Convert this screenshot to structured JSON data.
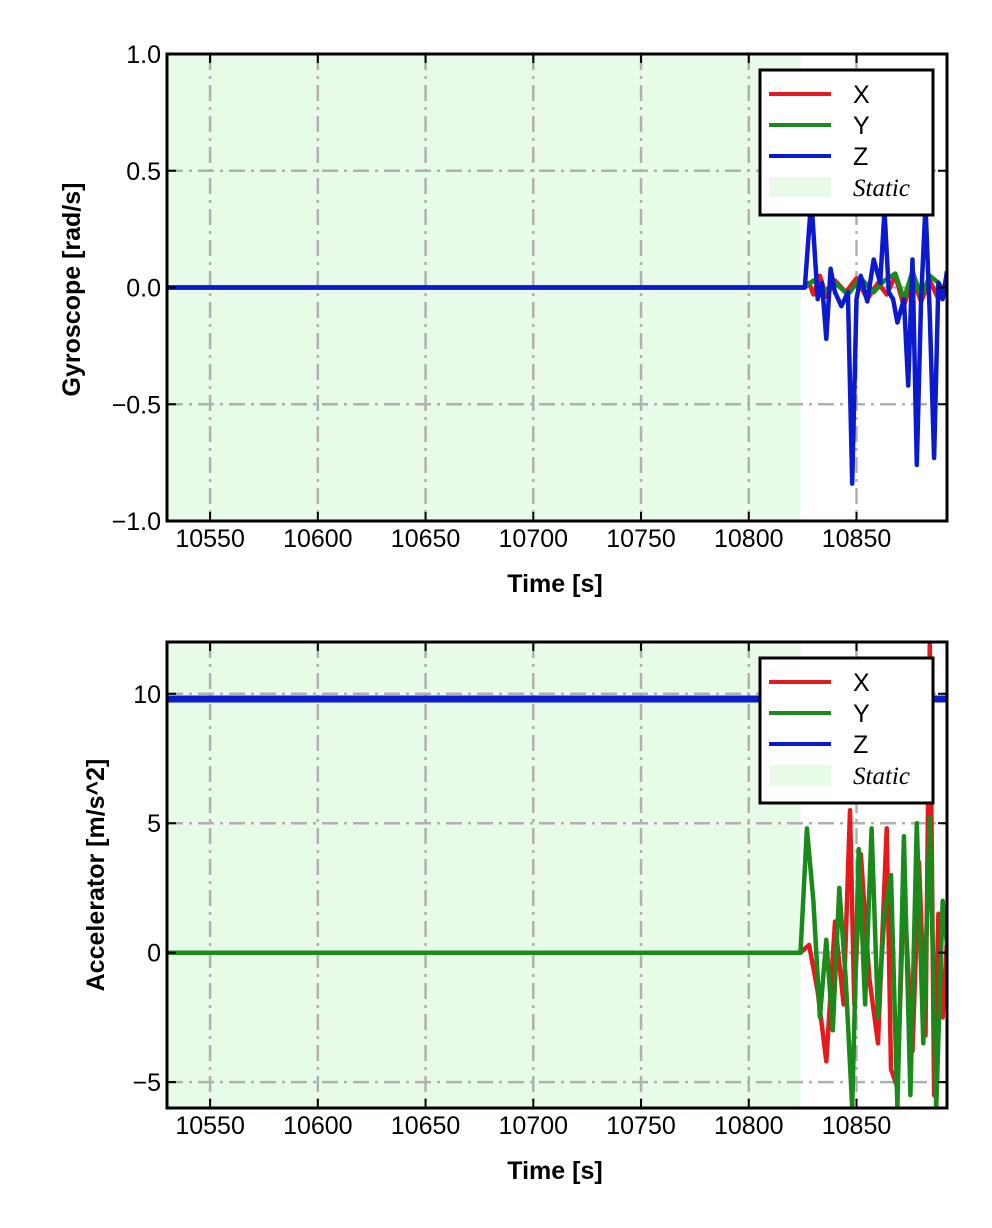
{
  "chart_data": [
    {
      "type": "line",
      "xlabel": "Time [s]",
      "ylabel": "Gyroscope [rad/s]",
      "xlim": [
        10530,
        10892
      ],
      "ylim": [
        -1.0,
        1.0
      ],
      "xticks": [
        10550,
        10600,
        10650,
        10700,
        10750,
        10800,
        10850
      ],
      "xtick_labels": [
        "10550",
        "10600",
        "10650",
        "10700",
        "10750",
        "10800",
        "10850"
      ],
      "yticks": [
        1.0,
        0.5,
        0.0,
        -0.5,
        -1.0
      ],
      "ytick_labels": [
        "1.0",
        "0.5",
        "0.0",
        "−0.5",
        "−1.0"
      ],
      "grid": true,
      "legend_position": "top-right",
      "static_region": {
        "label": "Static",
        "x_start": 10530,
        "x_end": 10824,
        "color": "#e8fbe8"
      },
      "series": [
        {
          "name": "X",
          "color": "#e41a1c",
          "x": [
            10530,
            10826,
            10828,
            10830,
            10833,
            10836,
            10840,
            10845,
            10850,
            10855,
            10860,
            10864,
            10868,
            10872,
            10876,
            10880,
            10884,
            10888,
            10892
          ],
          "y": [
            0.0,
            0.0,
            0.02,
            -0.03,
            0.05,
            -0.04,
            0.03,
            -0.02,
            0.04,
            -0.05,
            0.02,
            -0.03,
            0.05,
            -0.08,
            0.04,
            -0.06,
            0.03,
            -0.05,
            -0.02
          ]
        },
        {
          "name": "Y",
          "color": "#1a8a1a",
          "x": [
            10530,
            10826,
            10830,
            10835,
            10840,
            10846,
            10852,
            10858,
            10863,
            10868,
            10872,
            10876,
            10880,
            10884,
            10888,
            10892
          ],
          "y": [
            0.0,
            0.0,
            0.03,
            -0.02,
            0.02,
            -0.03,
            0.04,
            -0.02,
            0.03,
            0.06,
            -0.05,
            0.07,
            -0.04,
            0.05,
            0.02,
            -0.03
          ]
        },
        {
          "name": "Z",
          "color": "#0a1acc",
          "x": [
            10530,
            10826,
            10829,
            10832,
            10834,
            10836,
            10838,
            10840,
            10843,
            10846,
            10848,
            10850,
            10852,
            10855,
            10858,
            10861,
            10863,
            10865,
            10867,
            10869,
            10872,
            10874,
            10876,
            10878,
            10880,
            10882,
            10884,
            10886,
            10888,
            10890,
            10892
          ],
          "y": [
            0.0,
            0.0,
            0.38,
            -0.05,
            0.02,
            -0.22,
            0.08,
            -0.02,
            -0.08,
            -0.02,
            -0.84,
            -0.05,
            0.05,
            -0.06,
            0.12,
            0.02,
            0.33,
            -0.02,
            -0.05,
            -0.15,
            -0.05,
            -0.42,
            0.12,
            -0.76,
            -0.05,
            0.35,
            -0.12,
            -0.73,
            0.02,
            -0.05,
            0.07
          ]
        }
      ]
    },
    {
      "type": "line",
      "xlabel": "Time [s]",
      "ylabel": "Accelerator [m/s^2]",
      "xlim": [
        10530,
        10892
      ],
      "ylim": [
        -6.0,
        12.0
      ],
      "xticks": [
        10550,
        10600,
        10650,
        10700,
        10750,
        10800,
        10850
      ],
      "xtick_labels": [
        "10550",
        "10600",
        "10650",
        "10700",
        "10750",
        "10800",
        "10850"
      ],
      "yticks": [
        10,
        5,
        0,
        -5
      ],
      "ytick_labels": [
        "10",
        "5",
        "0",
        "−5"
      ],
      "grid": true,
      "legend_position": "top-right",
      "static_region": {
        "label": "Static",
        "x_start": 10530,
        "x_end": 10824,
        "color": "#e8fbe8"
      },
      "series": [
        {
          "name": "X",
          "color": "#e41a1c",
          "x": [
            10530,
            10824,
            10828,
            10832,
            10836,
            10840,
            10844,
            10847,
            10849,
            10852,
            10856,
            10860,
            10864,
            10866,
            10869,
            10872,
            10876,
            10879,
            10882,
            10884,
            10886,
            10888,
            10890,
            10892
          ],
          "y": [
            0.0,
            0.0,
            0.3,
            -1.5,
            -4.2,
            1.2,
            -2.0,
            5.5,
            -2.0,
            3.8,
            -1.0,
            -3.5,
            4.8,
            -4.5,
            -5.2,
            2.5,
            -3.8,
            3.5,
            -3.2,
            12.0,
            -5.5,
            1.5,
            -2.5,
            0.5
          ]
        },
        {
          "name": "Y",
          "color": "#1a8a1a",
          "x": [
            10530,
            10824,
            10827,
            10830,
            10833,
            10836,
            10839,
            10842,
            10845,
            10848,
            10851,
            10854,
            10857,
            10860,
            10863,
            10866,
            10869,
            10872,
            10875,
            10878,
            10881,
            10884,
            10887,
            10890,
            10892
          ],
          "y": [
            0.0,
            0.0,
            4.8,
            2.0,
            -2.5,
            0.5,
            -3.0,
            2.5,
            -1.0,
            -6.0,
            4.0,
            -2.0,
            4.8,
            -2.5,
            1.5,
            3.0,
            -6.0,
            4.5,
            -5.5,
            5.0,
            -3.5,
            5.2,
            -6.0,
            2.0,
            0.3
          ]
        },
        {
          "name": "Z",
          "color": "#0a1acc",
          "x": [
            10530,
            10892
          ],
          "y": [
            9.8,
            9.8
          ]
        }
      ]
    }
  ]
}
